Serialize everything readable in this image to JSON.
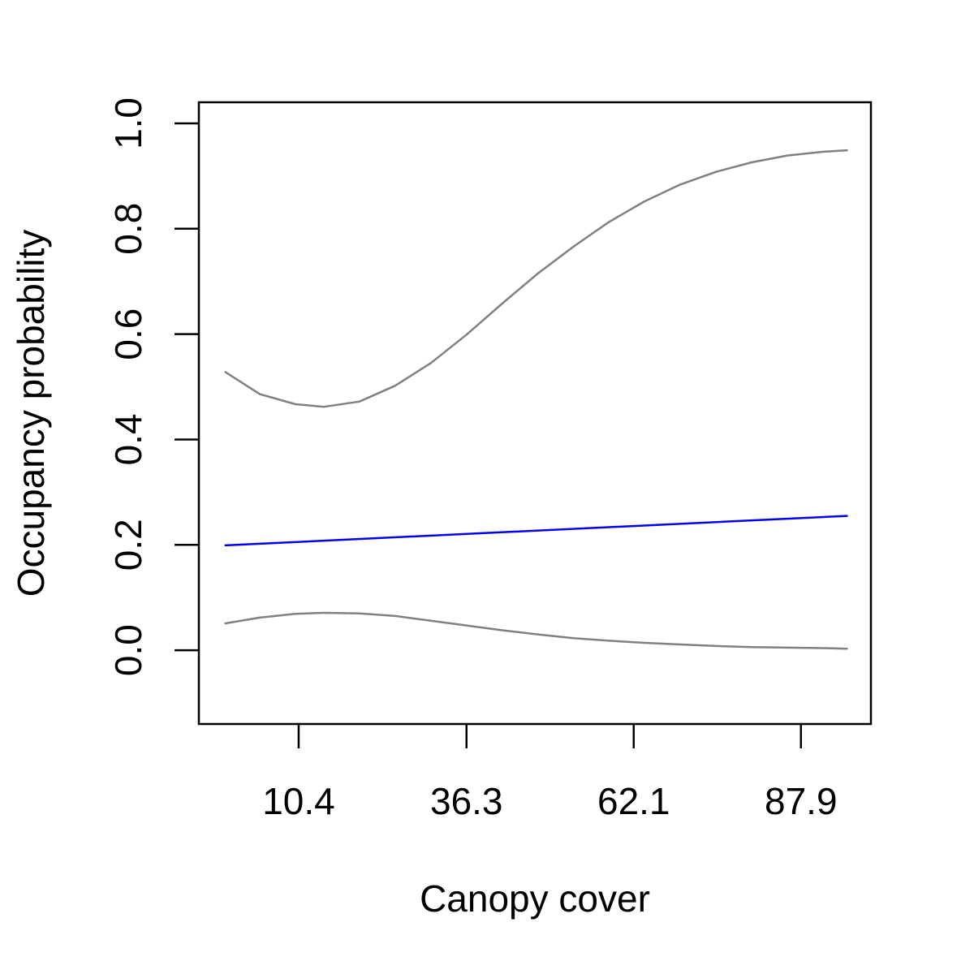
{
  "chart_data": {
    "type": "line",
    "title": "",
    "xlabel": "Canopy cover",
    "ylabel": "Occupancy probability",
    "xlim": [
      -5.0,
      98.7
    ],
    "ylim": [
      -0.14,
      1.04
    ],
    "xticks": [
      10.4,
      36.3,
      62.1,
      87.9
    ],
    "xtick_labels": [
      "10.4",
      "36.3",
      "62.1",
      "87.9"
    ],
    "yticks": [
      0.0,
      0.2,
      0.4,
      0.6,
      0.8,
      1.0
    ],
    "ytick_labels": [
      "0.0",
      "0.2",
      "0.4",
      "0.6",
      "0.8",
      "1.0"
    ],
    "grid": false,
    "legend": "none",
    "series": [
      {
        "role": "upper",
        "color": "#808080",
        "x": [
          -0.9,
          4.4,
          9.9,
          14.3,
          19.8,
          25.3,
          30.8,
          36.3,
          41.8,
          47.3,
          52.8,
          58.3,
          63.8,
          69.3,
          74.8,
          80.3,
          85.8,
          91.3,
          95.0
        ],
        "y": [
          0.528,
          0.486,
          0.467,
          0.462,
          0.472,
          0.502,
          0.545,
          0.599,
          0.658,
          0.715,
          0.766,
          0.813,
          0.852,
          0.884,
          0.908,
          0.926,
          0.939,
          0.946,
          0.949
        ]
      },
      {
        "role": "fit",
        "color": "#0000ee",
        "x": [
          -0.9,
          95.0
        ],
        "y": [
          0.199,
          0.255
        ]
      },
      {
        "role": "lower",
        "color": "#808080",
        "x": [
          -0.9,
          4.4,
          9.9,
          14.3,
          19.8,
          25.3,
          30.8,
          36.3,
          41.8,
          47.3,
          52.8,
          58.3,
          63.8,
          69.3,
          74.8,
          80.3,
          85.8,
          91.3,
          95.0
        ],
        "y": [
          0.051,
          0.062,
          0.069,
          0.071,
          0.07,
          0.065,
          0.056,
          0.047,
          0.038,
          0.03,
          0.023,
          0.018,
          0.014,
          0.011,
          0.008,
          0.006,
          0.005,
          0.004,
          0.003
        ]
      }
    ]
  }
}
